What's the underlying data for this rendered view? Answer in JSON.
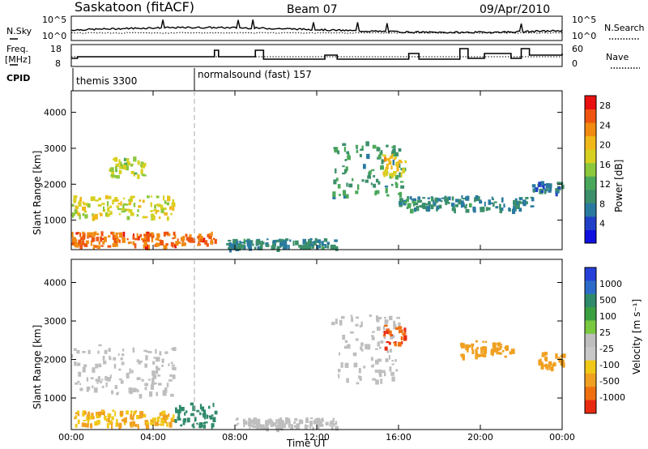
{
  "header": {
    "site": "Saskatoon (fitACF)",
    "beam": "Beam 07",
    "date": "09/Apr/2010"
  },
  "noise_panel": {
    "left_label": "N.Sky",
    "right_label": "N.Search",
    "left_ticks": [
      "10^5",
      "10^0"
    ],
    "right_ticks": [
      "10^5",
      "10^0"
    ]
  },
  "freq_panel": {
    "left_label_1": "Freq.",
    "left_label_2": "[MHz]",
    "right_label": "Nave",
    "left_ticks": [
      "18",
      "8"
    ],
    "right_ticks": [
      "60",
      "0"
    ]
  },
  "cpid": {
    "label": "CPID",
    "modes": [
      {
        "name": "themis 3300",
        "start_hour": 0.0
      },
      {
        "name": "normalsound (fast) 157",
        "start_hour": 5.9
      }
    ]
  },
  "colors": {
    "power_scale": [
      "#1010e0",
      "#2040c8",
      "#2a7aa0",
      "#3b8f6a",
      "#4aa85a",
      "#8cc83c",
      "#d8d020",
      "#f0b818",
      "#f08a10",
      "#ee5510",
      "#e81010"
    ],
    "velocity_scale": [
      "#2540d8",
      "#2c6cc8",
      "#2e8a6a",
      "#3aa040",
      "#78c840",
      "#bebebe",
      "#c8c8c8",
      "#f0c818",
      "#f0a020",
      "#f07010",
      "#e82a10"
    ]
  },
  "chart_data": [
    {
      "type": "heatmap",
      "title": "Power",
      "ylabel": "Slant Range [km]",
      "xlabel": "Time UT",
      "xlim": [
        0,
        24
      ],
      "ylim": [
        180,
        4600
      ],
      "yticks": [
        1000,
        2000,
        3000,
        4000
      ],
      "colorbar": {
        "label": "Power [dB]",
        "ticks": [
          "4",
          "8",
          "12",
          "16",
          "20",
          "24",
          "28"
        ],
        "range": [
          0,
          30
        ]
      },
      "features": [
        {
          "t0": 0.0,
          "t1": 5.0,
          "r0": 1100,
          "r1": 1700,
          "level": 18
        },
        {
          "t0": 1.8,
          "t1": 3.6,
          "r0": 2200,
          "r1": 2800,
          "level": 16
        },
        {
          "t0": 0.0,
          "t1": 7.0,
          "r0": 300,
          "r1": 700,
          "level": 26
        },
        {
          "t0": 7.5,
          "t1": 13.0,
          "r0": 250,
          "r1": 500,
          "level": 8
        },
        {
          "t0": 12.7,
          "t1": 16.2,
          "r0": 1700,
          "r1": 3200,
          "level": 10
        },
        {
          "t0": 15.2,
          "t1": 16.3,
          "r0": 2300,
          "r1": 2900,
          "level": 20
        },
        {
          "t0": 16.0,
          "t1": 22.5,
          "r0": 1300,
          "r1": 1700,
          "level": 8
        },
        {
          "t0": 22.5,
          "t1": 24.0,
          "r0": 1800,
          "r1": 2100,
          "level": 6
        }
      ]
    },
    {
      "type": "heatmap",
      "title": "Velocity",
      "ylabel": "Slant Range [km]",
      "xlabel": "Time UT",
      "xlim": [
        0,
        24
      ],
      "ylim": [
        180,
        4600
      ],
      "yticks": [
        1000,
        2000,
        3000,
        4000
      ],
      "colorbar": {
        "label": "Velocity [m s⁻¹]",
        "ticks": [
          "1000",
          "500",
          "100",
          "25",
          "-25",
          "-100",
          "-500",
          "-1000"
        ]
      },
      "features": [
        {
          "t0": 0.0,
          "t1": 5.0,
          "r0": 1100,
          "r1": 2400,
          "level": 0
        },
        {
          "t0": 0.0,
          "t1": 5.0,
          "r0": 300,
          "r1": 700,
          "level": -60
        },
        {
          "t0": 5.0,
          "t1": 7.0,
          "r0": 300,
          "r1": 900,
          "level": 120
        },
        {
          "t0": 8.0,
          "t1": 13.0,
          "r0": 250,
          "r1": 500,
          "level": -10
        },
        {
          "t0": 12.7,
          "t1": 16.0,
          "r0": 1400,
          "r1": 3200,
          "level": 0
        },
        {
          "t0": 15.2,
          "t1": 16.3,
          "r0": 2300,
          "r1": 2900,
          "level": -700
        },
        {
          "t0": 19.0,
          "t1": 21.5,
          "r0": 2100,
          "r1": 2500,
          "level": -150
        },
        {
          "t0": 22.8,
          "t1": 24.0,
          "r0": 1800,
          "r1": 2200,
          "level": -120
        }
      ]
    }
  ],
  "time_axis": {
    "label": "Time UT",
    "ticks": [
      "00:00",
      "04:00",
      "08:00",
      "12:00",
      "16:00",
      "20:00",
      "00:00"
    ]
  }
}
